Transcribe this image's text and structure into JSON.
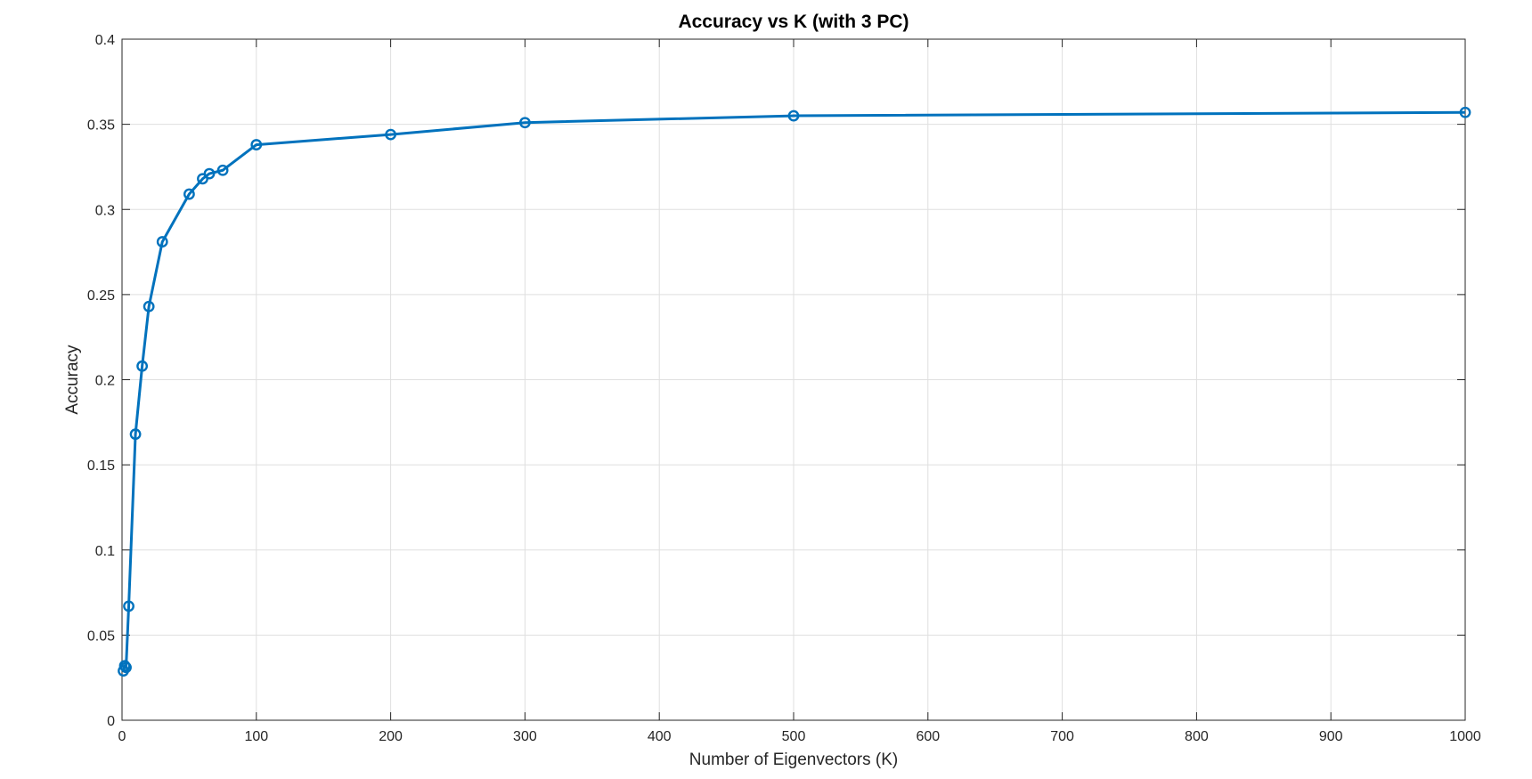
{
  "chart_data": {
    "type": "line",
    "title": "Accuracy vs K (with 3 PC)",
    "xlabel": "Number of Eigenvectors (K)",
    "ylabel": "Accuracy",
    "xlim": [
      0,
      1000
    ],
    "ylim": [
      0,
      0.4
    ],
    "xticks": [
      0,
      100,
      200,
      300,
      400,
      500,
      600,
      700,
      800,
      900,
      1000
    ],
    "yticks": [
      0,
      0.05,
      0.1,
      0.15,
      0.2,
      0.25,
      0.3,
      0.35,
      0.4
    ],
    "xtick_labels": [
      "0",
      "100",
      "200",
      "300",
      "400",
      "500",
      "600",
      "700",
      "800",
      "900",
      "1000"
    ],
    "ytick_labels": [
      "0",
      "0.05",
      "0.1",
      "0.15",
      "0.2",
      "0.25",
      "0.3",
      "0.35",
      "0.4"
    ],
    "grid": true,
    "marker": "circle",
    "color": "#0072BD",
    "series": [
      {
        "x": [
          1,
          2,
          3,
          5,
          10,
          15,
          20,
          30,
          50,
          60,
          65,
          75,
          100,
          200,
          300,
          500,
          1000
        ],
        "values": [
          0.029,
          0.032,
          0.031,
          0.067,
          0.168,
          0.208,
          0.243,
          0.281,
          0.309,
          0.318,
          0.321,
          0.323,
          0.338,
          0.344,
          0.351,
          0.355,
          0.357
        ]
      }
    ]
  }
}
